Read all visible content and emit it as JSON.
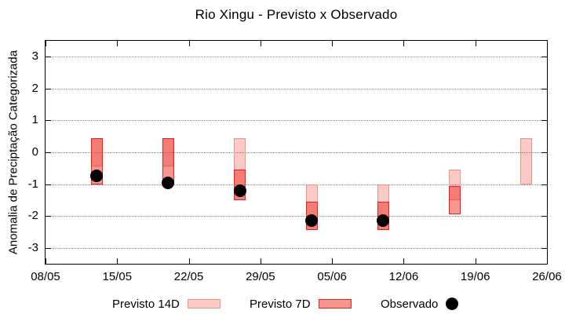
{
  "title": "Rio Xingu - Previsto x Observado",
  "chart_data": {
    "type": "bar",
    "variant": "forecast-interval-boxes-with-observed-scatter",
    "title": "Rio Xingu - Previsto x Observado",
    "ylabel": "Anomalia de Preciptação Categorizada",
    "xlabel": "",
    "ylim": [
      -3.5,
      3.5
    ],
    "yticks": [
      -3,
      -2,
      -1,
      0,
      1,
      2,
      3
    ],
    "xticks": [
      "08/05",
      "15/05",
      "22/05",
      "29/05",
      "05/06",
      "12/06",
      "19/06",
      "26/06"
    ],
    "x_span_days": 49,
    "grid": "horizontal-dotted",
    "legend_position": "bottom-center",
    "legend": [
      {
        "label": "Previsto 14D",
        "swatch": "light-red-box"
      },
      {
        "label": "Previsto 7D",
        "swatch": "red-box"
      },
      {
        "label": "Observado",
        "swatch": "black-dot"
      }
    ],
    "series": [
      {
        "date": "13/05",
        "previsto_14d": [
          -0.45,
          0.45
        ],
        "previsto_7d": [
          -1.0,
          0.45
        ],
        "observado": -0.75
      },
      {
        "date": "20/05",
        "previsto_14d": [
          -0.45,
          0.45
        ],
        "previsto_7d": [
          -0.9,
          0.45
        ],
        "observado": -0.95
      },
      {
        "date": "27/05",
        "previsto_14d": [
          -1.5,
          0.45
        ],
        "previsto_7d": [
          -1.5,
          -0.55
        ],
        "observado": -1.2
      },
      {
        "date": "03/06",
        "previsto_14d": [
          -2.45,
          -1.0
        ],
        "previsto_7d": [
          -2.45,
          -1.55
        ],
        "observado": -2.15
      },
      {
        "date": "10/06",
        "previsto_14d": [
          -2.45,
          -1.0
        ],
        "previsto_7d": [
          -2.45,
          -1.55
        ],
        "observado": -2.15
      },
      {
        "date": "17/06",
        "previsto_14d": [
          -1.5,
          -0.55
        ],
        "previsto_7d": [
          -1.95,
          -1.05
        ],
        "observado": null
      },
      {
        "date": "24/06",
        "previsto_14d": [
          -1.0,
          0.45
        ],
        "previsto_7d": null,
        "observado": null
      }
    ],
    "colors": {
      "previsto_14d_fill": "#f9cfc9",
      "previsto_14d_border": "#f09383",
      "previsto_7d_fill": "#f79188",
      "previsto_7d_border": "#e6201a",
      "overlap_fill": "#f4675e",
      "observado": "#000000",
      "grid": "#888888",
      "axis": "#000000"
    }
  }
}
